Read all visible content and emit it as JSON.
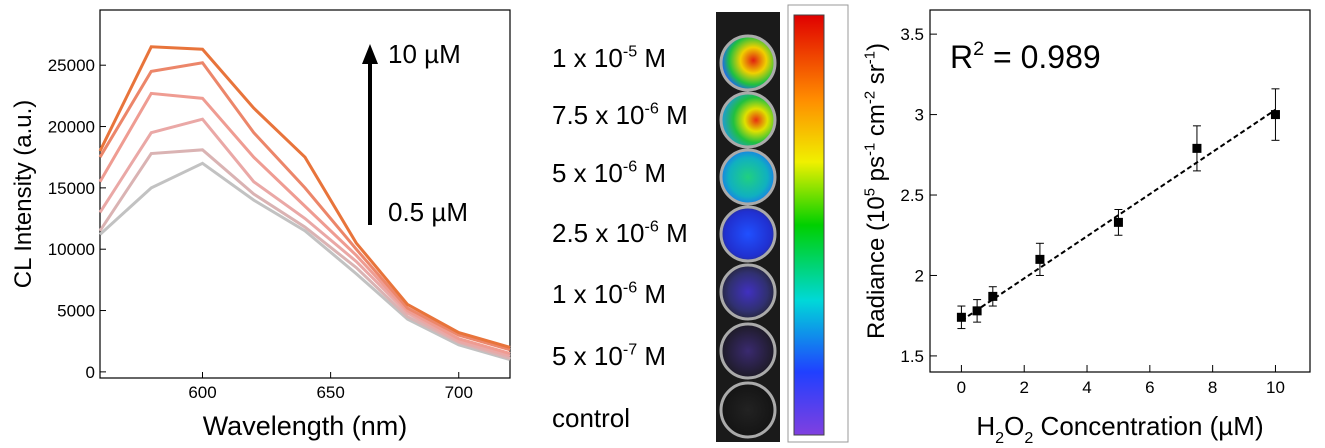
{
  "chart_data": [
    {
      "type": "line",
      "y_label": "CL Intensity (a.u.)",
      "x_label": "Wavelength (nm)",
      "x": [
        560,
        580,
        600,
        620,
        640,
        660,
        680,
        700,
        720
      ],
      "xlim": [
        560,
        720
      ],
      "xticks": [
        600,
        650,
        700
      ],
      "ylim": [
        -500,
        29500
      ],
      "yticks": [
        0,
        5000,
        10000,
        15000,
        20000,
        25000
      ],
      "annotations": [
        "10 µM",
        "0.5 µM"
      ],
      "series": [
        {
          "color": "#e8743b",
          "values": [
            18000,
            26500,
            26300,
            21500,
            17500,
            10500,
            5500,
            3200,
            2000
          ]
        },
        {
          "color": "#ec866a",
          "values": [
            17500,
            24500,
            25200,
            19500,
            15000,
            10000,
            5200,
            3000,
            1800
          ]
        },
        {
          "color": "#ef9c92",
          "values": [
            15500,
            22700,
            22300,
            17500,
            13500,
            9500,
            5000,
            2700,
            1500
          ]
        },
        {
          "color": "#eaa8a6",
          "values": [
            13000,
            19500,
            20600,
            15500,
            12500,
            9000,
            4800,
            2500,
            1300
          ]
        },
        {
          "color": "#dab3b3",
          "values": [
            11500,
            17800,
            18100,
            14500,
            11800,
            8500,
            4500,
            2400,
            1100
          ]
        },
        {
          "color": "#c2c2c2",
          "values": [
            11200,
            15000,
            17000,
            14000,
            11500,
            8000,
            4300,
            2200,
            1000
          ]
        }
      ]
    },
    {
      "type": "errorbar",
      "annotation": [
        {
          "text": "R"
        },
        {
          "text": "2",
          "sup": true
        },
        {
          "text": " = 0.989"
        }
      ],
      "y_label": [
        {
          "text": "Radiance (10"
        },
        {
          "text": "5",
          "sup": true
        },
        {
          "text": " ps"
        },
        {
          "text": "-1",
          "sup": true
        },
        {
          "text": " cm"
        },
        {
          "text": "-2",
          "sup": true
        },
        {
          "text": " sr"
        },
        {
          "text": "-1",
          "sup": true
        },
        {
          "text": ")"
        }
      ],
      "x_label": [
        {
          "text": "H"
        },
        {
          "text": "2",
          "sub": true
        },
        {
          "text": "O"
        },
        {
          "text": "2",
          "sub": true
        },
        {
          "text": " Concentration (µM)"
        }
      ],
      "x": [
        0,
        0.5,
        1,
        2.5,
        5,
        7.5,
        10
      ],
      "values": [
        1.74,
        1.78,
        1.87,
        2.1,
        2.33,
        2.79,
        3.0
      ],
      "errors": [
        0.07,
        0.07,
        0.06,
        0.1,
        0.08,
        0.14,
        0.16
      ],
      "color": "#000000",
      "fit": {
        "x": [
          0,
          10
        ],
        "y": [
          1.72,
          3.03
        ]
      },
      "xlim": [
        -1,
        11.1
      ],
      "xticks": [
        0,
        2,
        4,
        6,
        8,
        10
      ],
      "ylim": [
        1.4,
        3.65
      ],
      "yticks": [
        1.5,
        2.0,
        2.5,
        3.0,
        3.5
      ]
    }
  ],
  "image_panel": {
    "labels": [
      [
        {
          "text": "1 x 10"
        },
        {
          "text": "-5",
          "sup": true
        },
        {
          "text": " M"
        }
      ],
      [
        {
          "text": "7.5 x 10"
        },
        {
          "text": "-6",
          "sup": true
        },
        {
          "text": " M"
        }
      ],
      [
        {
          "text": "5 x 10"
        },
        {
          "text": "-6",
          "sup": true
        },
        {
          "text": " M"
        }
      ],
      [
        {
          "text": "2.5 x 10"
        },
        {
          "text": "-6",
          "sup": true
        },
        {
          "text": " M"
        }
      ],
      [
        {
          "text": "1 x 10"
        },
        {
          "text": "-6",
          "sup": true
        },
        {
          "text": " M"
        }
      ],
      [
        {
          "text": "5 x 10"
        },
        {
          "text": "-7",
          "sup": true
        },
        {
          "text": " M"
        }
      ],
      [
        {
          "text": "control"
        }
      ]
    ]
  }
}
